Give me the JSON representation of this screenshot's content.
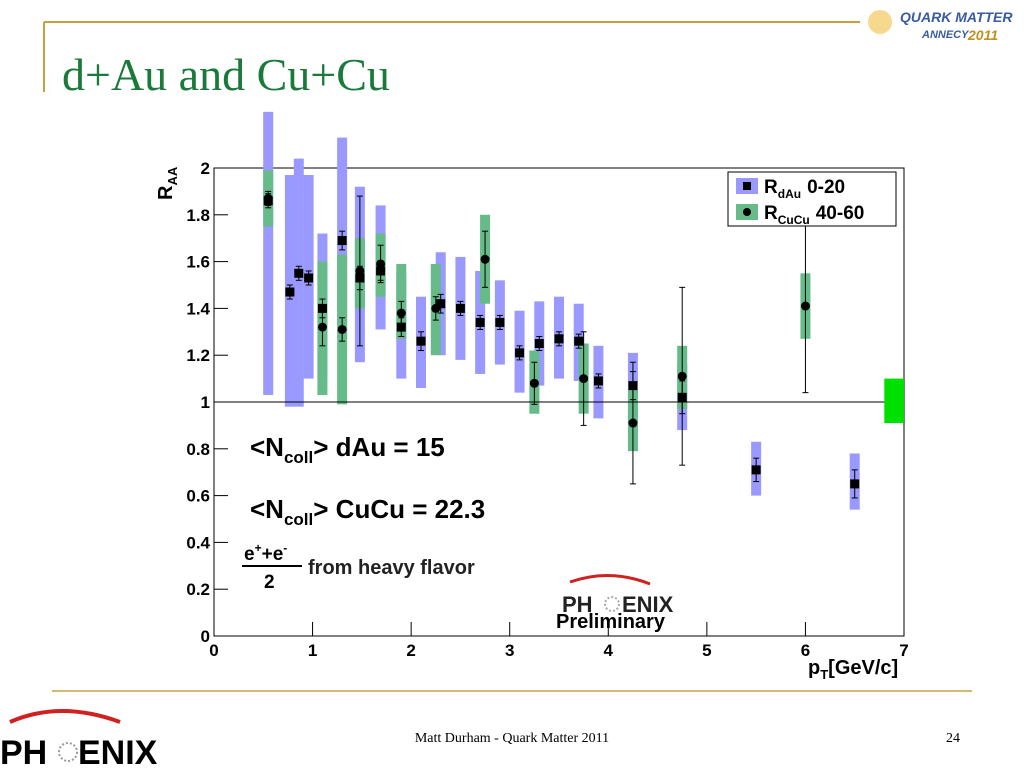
{
  "slide": {
    "title": "d+Au and Cu+Cu",
    "footer": "Matt Durham - Quark Matter 2011",
    "page_number": "24",
    "conference_logo": {
      "line1": "QUARK MATTER",
      "line2": "ANNECY",
      "year": "2011"
    },
    "corner_logo": {
      "left": "PH",
      "right": "ENIX"
    }
  },
  "chart_data": {
    "type": "scatter",
    "y_label": {
      "main": "R",
      "sub": "AA"
    },
    "x_label": {
      "main": "p",
      "sub": "T",
      "unit": "[GeV/c]"
    },
    "xlim": [
      0,
      7
    ],
    "ylim": [
      0,
      2
    ],
    "xticks": [
      0,
      1,
      2,
      3,
      4,
      5,
      6,
      7
    ],
    "yticks": [
      0,
      0.2,
      0.4,
      0.6,
      0.8,
      1,
      1.2,
      1.4,
      1.6,
      1.8,
      2
    ],
    "reference_line": 1,
    "global_uncertainty": {
      "x": [
        6.8,
        7.0
      ],
      "low": 0.91,
      "high": 1.1,
      "color": "#00e000"
    },
    "legend_position": "upper right",
    "series": [
      {
        "name_parts": [
          "R",
          "dAu",
          "0-20"
        ],
        "marker": "square",
        "color": "#9999ff",
        "x": [
          0.55,
          0.77,
          0.86,
          0.96,
          1.1,
          1.3,
          1.48,
          1.69,
          1.9,
          2.1,
          2.3,
          2.5,
          2.7,
          2.9,
          3.1,
          3.3,
          3.5,
          3.7,
          3.9,
          4.25,
          4.75,
          5.5,
          6.5
        ],
        "values": [
          1.86,
          1.47,
          1.55,
          1.53,
          1.4,
          1.69,
          1.53,
          1.56,
          1.32,
          1.26,
          1.42,
          1.4,
          1.34,
          1.34,
          1.21,
          1.25,
          1.27,
          1.26,
          1.09,
          1.07,
          1.02,
          0.71,
          0.65
        ],
        "errors": [
          0.03,
          0.03,
          0.03,
          0.03,
          0.04,
          0.04,
          0.05,
          0.04,
          0.04,
          0.04,
          0.04,
          0.03,
          0.03,
          0.03,
          0.03,
          0.03,
          0.03,
          0.03,
          0.03,
          0.06,
          0.07,
          0.05,
          0.06
        ],
        "sys_low": [
          1.03,
          0.98,
          0.98,
          1.1,
          1.1,
          1.27,
          1.17,
          1.31,
          1.1,
          1.06,
          1.2,
          1.18,
          1.12,
          1.16,
          1.04,
          1.07,
          1.1,
          1.09,
          0.93,
          0.89,
          0.88,
          0.6,
          0.54
        ],
        "sys_high": [
          2.24,
          1.97,
          2.04,
          1.97,
          1.72,
          2.13,
          1.92,
          1.84,
          1.55,
          1.45,
          1.64,
          1.62,
          1.56,
          1.52,
          1.39,
          1.43,
          1.45,
          1.42,
          1.24,
          1.21,
          1.16,
          0.83,
          0.78
        ]
      },
      {
        "name_parts": [
          "R",
          "CuCu",
          "40-60"
        ],
        "marker": "circle",
        "color": "#66bb88",
        "x": [
          0.55,
          1.1,
          1.3,
          1.48,
          1.69,
          1.9,
          2.25,
          2.75,
          3.25,
          3.75,
          4.25,
          4.75,
          6.0
        ],
        "values": [
          1.87,
          1.32,
          1.31,
          1.56,
          1.59,
          1.38,
          1.4,
          1.61,
          1.08,
          1.1,
          0.91,
          1.11,
          1.41
        ],
        "errors": [
          0.03,
          0.08,
          0.05,
          0.32,
          0.08,
          0.05,
          0.05,
          0.12,
          0.09,
          0.2,
          0.26,
          0.38,
          0.37
        ],
        "sys_low": [
          1.75,
          1.03,
          0.99,
          1.4,
          1.45,
          1.27,
          1.2,
          1.42,
          0.95,
          0.95,
          0.79,
          0.97,
          1.27
        ],
        "sys_high": [
          1.99,
          1.6,
          1.63,
          1.7,
          1.72,
          1.59,
          1.59,
          1.8,
          1.22,
          1.25,
          1.05,
          1.24,
          1.55
        ]
      }
    ],
    "annotations": {
      "ncoll_dau": {
        "open": "<N",
        "sub": "coll",
        "rest": "> dAu = 15"
      },
      "ncoll_cucu": {
        "open": "<N",
        "sub": "coll",
        "rest": "> CuCu = 22.3"
      },
      "formula": {
        "e1": "e",
        "sup1": "+",
        "plus": "+e",
        "sup2": "-",
        "denominator": "2",
        "text": "from heavy flavor"
      },
      "logo": {
        "left": "PH",
        "right": "ENIX",
        "status": "Preliminary"
      }
    }
  }
}
